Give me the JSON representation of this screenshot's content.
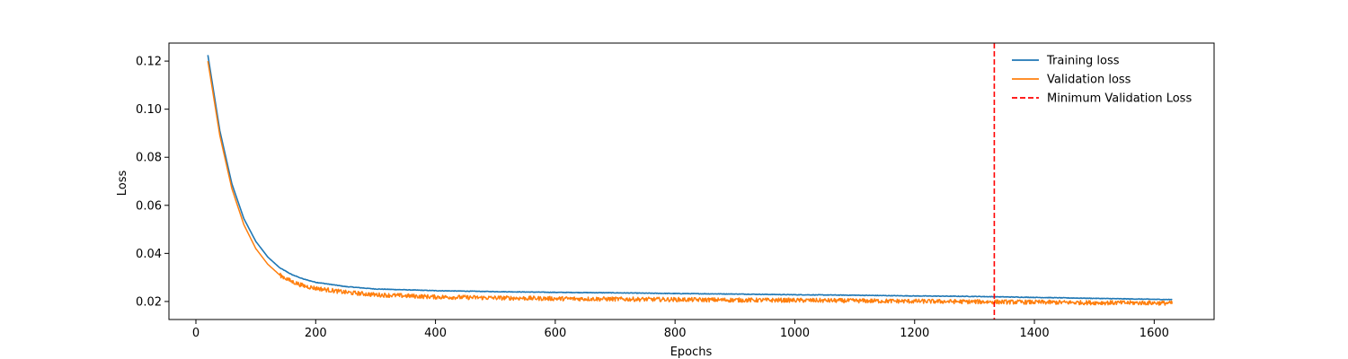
{
  "chart_data": {
    "type": "line",
    "title": "",
    "xlabel": "Epochs",
    "ylabel": "Loss",
    "xlim": [
      -45,
      1700
    ],
    "ylim": [
      0.0125,
      0.1275
    ],
    "xticks": [
      0,
      200,
      400,
      600,
      800,
      1000,
      1200,
      1400,
      1600
    ],
    "yticks": [
      0.02,
      0.04,
      0.06,
      0.08,
      0.1,
      0.12
    ],
    "x_tick_labels": [
      "0",
      "200",
      "400",
      "600",
      "800",
      "1000",
      "1200",
      "1400",
      "1600"
    ],
    "y_tick_labels": [
      "0.02",
      "0.04",
      "0.06",
      "0.08",
      "0.10",
      "0.12"
    ],
    "grid": false,
    "legend_position": "top-right",
    "series": [
      {
        "name": "Training loss",
        "color": "#1f77b4",
        "x": [
          20,
          40,
          60,
          80,
          100,
          120,
          140,
          160,
          180,
          200,
          250,
          300,
          400,
          500,
          600,
          700,
          800,
          900,
          1000,
          1100,
          1200,
          1300,
          1400,
          1500,
          1600,
          1630
        ],
        "y": [
          0.1225,
          0.091,
          0.069,
          0.0545,
          0.045,
          0.0385,
          0.034,
          0.0312,
          0.0293,
          0.028,
          0.0262,
          0.0252,
          0.0245,
          0.0241,
          0.0238,
          0.0236,
          0.0233,
          0.0231,
          0.0228,
          0.0226,
          0.0223,
          0.0221,
          0.0217,
          0.0213,
          0.0209,
          0.0208
        ]
      },
      {
        "name": "Validation loss",
        "color": "#ff7f0e",
        "x": [
          20,
          40,
          60,
          80,
          100,
          120,
          140,
          160,
          180,
          200,
          250,
          300,
          400,
          500,
          600,
          700,
          800,
          900,
          1000,
          1100,
          1200,
          1300,
          1400,
          1500,
          1600,
          1630
        ],
        "y": [
          0.12,
          0.089,
          0.067,
          0.052,
          0.042,
          0.0355,
          0.031,
          0.0283,
          0.0265,
          0.0255,
          0.0238,
          0.0228,
          0.0219,
          0.0215,
          0.0212,
          0.021,
          0.0208,
          0.0206,
          0.0205,
          0.0203,
          0.0201,
          0.0199,
          0.0197,
          0.0195,
          0.0194,
          0.0193
        ]
      }
    ],
    "markers": [
      {
        "name": "Minimum Validation Loss",
        "x": 1333,
        "color": "#ff0000",
        "style": "dashed"
      }
    ]
  }
}
